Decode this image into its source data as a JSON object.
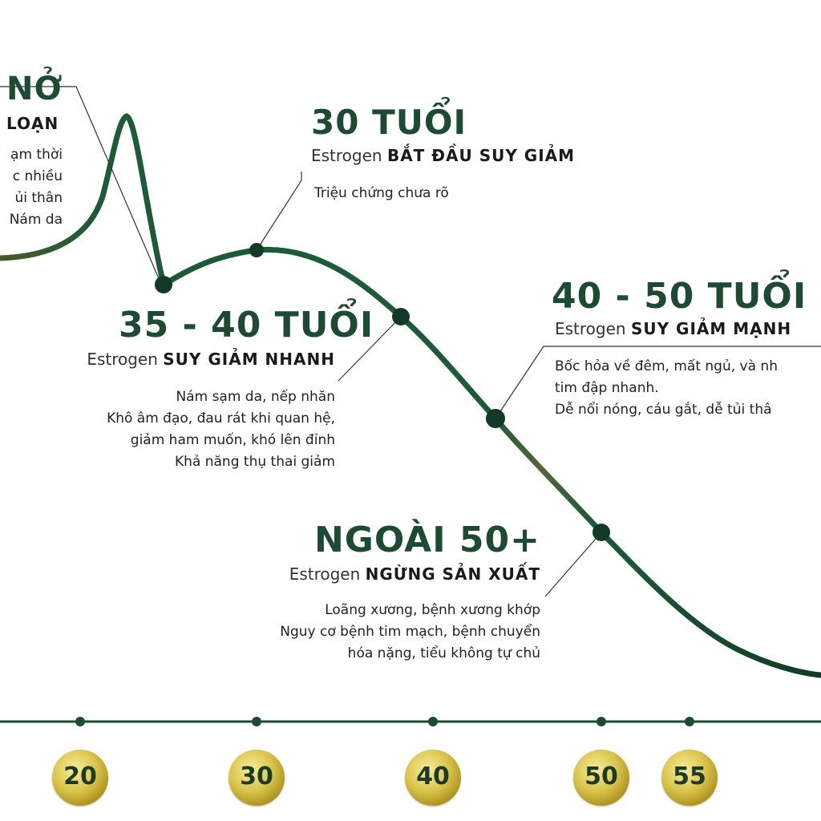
{
  "colors": {
    "curve": "#1d5a3a",
    "curve_dark": "#0f3a24",
    "accent_gold": "#d9c34a",
    "text_dark": "#1d4a33"
  },
  "puberty": {
    "title": "NỞ",
    "sub_bold": "LOẠN",
    "lines": [
      "ạm thời",
      "c nhiều",
      "ủi thân",
      "Nám da"
    ]
  },
  "age30": {
    "title": "30 TUỔI",
    "sub_plain": "Estrogen",
    "sub_bold": "BẮT ĐẦU SUY GIẢM",
    "lines": [
      "Triệu chứng chưa rõ"
    ]
  },
  "age35_40": {
    "title": "35 - 40 TUỔI",
    "sub_plain": "Estrogen",
    "sub_bold": "SUY GIẢM NHANH",
    "lines": [
      "Nám sạm da, nếp nhăn",
      "Khô âm đạo, đau rát khi quan hệ,",
      "giảm ham muốn, khó lên đỉnh",
      "Khả năng thụ thai giảm"
    ]
  },
  "age40_50": {
    "title": "40 - 50 TUỔI",
    "sub_plain": "Estrogen",
    "sub_bold": "SUY GIẢM MẠNH",
    "lines": [
      "Bốc hỏa về đêm, mất ngủ, và nh",
      "tim đập nhanh.",
      "Dễ nổi nóng, cáu gắt, dễ tủi thâ"
    ]
  },
  "age50plus": {
    "title": "NGOÀI 50+",
    "sub_plain": "Estrogen",
    "sub_bold": "NGỪNG SẢN XUẤT",
    "lines": [
      "Loãng xương, bệnh xương khớp",
      "Nguy cơ bệnh tim mạch, bệnh chuyển",
      "hóa nặng, tiểu không tự chủ"
    ]
  },
  "axis": {
    "ticks": [
      "20",
      "30",
      "40",
      "50",
      "55"
    ]
  }
}
